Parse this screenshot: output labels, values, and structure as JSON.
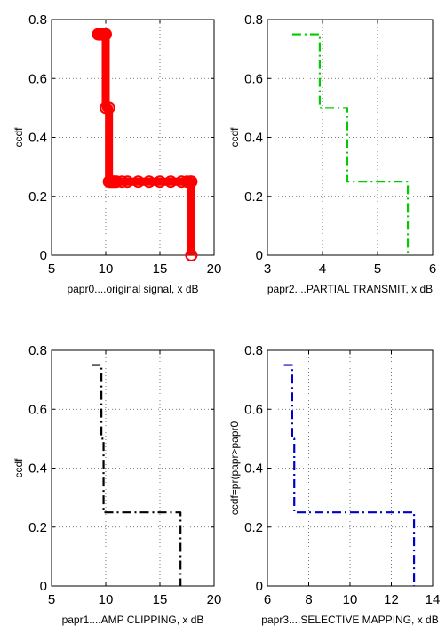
{
  "chart_data": [
    {
      "type": "line",
      "xlabel": "papr0....original signal, x dB",
      "ylabel": "ccdf",
      "xlim": [
        5,
        20
      ],
      "ylim": [
        0,
        0.8
      ],
      "xticks": [
        5,
        10,
        15,
        20
      ],
      "yticks": [
        0,
        0.2,
        0.4,
        0.6,
        0.8
      ],
      "grid": true,
      "series": [
        {
          "color": "#ff0000",
          "style": "solid-thick-with-circle-markers",
          "x": [
            9.3,
            9.4,
            9.5,
            9.6,
            9.7,
            9.8,
            9.9,
            10.0,
            10.0,
            10.3,
            10.3,
            10.4,
            10.5,
            10.6,
            10.7,
            10.8,
            10.9,
            11.0,
            11.5,
            12.0,
            13.0,
            14.0,
            15.0,
            16.0,
            17.0,
            17.5,
            17.8,
            17.9,
            17.9
          ],
          "y": [
            0.75,
            0.75,
            0.75,
            0.75,
            0.75,
            0.75,
            0.75,
            0.75,
            0.5,
            0.5,
            0.25,
            0.25,
            0.25,
            0.25,
            0.25,
            0.25,
            0.25,
            0.25,
            0.25,
            0.25,
            0.25,
            0.25,
            0.25,
            0.25,
            0.25,
            0.25,
            0.25,
            0.25,
            0.0
          ]
        }
      ]
    },
    {
      "type": "line",
      "xlabel": "papr2....PARTIAL TRANSMIT, x dB",
      "ylabel": "ccdf",
      "xlim": [
        3,
        6
      ],
      "ylim": [
        0,
        0.8
      ],
      "xticks": [
        3,
        4,
        5,
        6
      ],
      "yticks": [
        0,
        0.2,
        0.4,
        0.6,
        0.8
      ],
      "grid": true,
      "series": [
        {
          "color": "#00cc00",
          "style": "dash-dot",
          "x": [
            3.45,
            3.95,
            3.95,
            4.45,
            4.45,
            5.55,
            5.55
          ],
          "y": [
            0.75,
            0.75,
            0.5,
            0.5,
            0.25,
            0.25,
            0.0
          ]
        }
      ]
    },
    {
      "type": "line",
      "xlabel": "papr1....AMP CLIPPING, x dB",
      "ylabel": "ccdf",
      "xlim": [
        5,
        20
      ],
      "ylim": [
        0,
        0.8
      ],
      "xticks": [
        5,
        10,
        15,
        20
      ],
      "yticks": [
        0,
        0.2,
        0.4,
        0.6,
        0.8
      ],
      "grid": true,
      "series": [
        {
          "color": "#000000",
          "style": "dash-dot",
          "x": [
            8.7,
            9.6,
            9.6,
            9.8,
            9.8,
            16.9,
            16.9
          ],
          "y": [
            0.75,
            0.75,
            0.5,
            0.5,
            0.25,
            0.25,
            0.0
          ]
        }
      ]
    },
    {
      "type": "line",
      "xlabel": "papr3....SELECTIVE MAPPING, x dB",
      "ylabel": "ccdf=pr(papr>papr0",
      "xlim": [
        6,
        14
      ],
      "ylim": [
        0,
        0.8
      ],
      "xticks": [
        6,
        8,
        10,
        12,
        14
      ],
      "yticks": [
        0,
        0.2,
        0.4,
        0.6,
        0.8
      ],
      "grid": true,
      "series": [
        {
          "color": "#0000cc",
          "style": "dash-dot",
          "x": [
            6.8,
            7.2,
            7.2,
            7.3,
            7.3,
            13.1,
            13.1
          ],
          "y": [
            0.75,
            0.75,
            0.5,
            0.5,
            0.25,
            0.25,
            0.0
          ]
        }
      ]
    }
  ]
}
